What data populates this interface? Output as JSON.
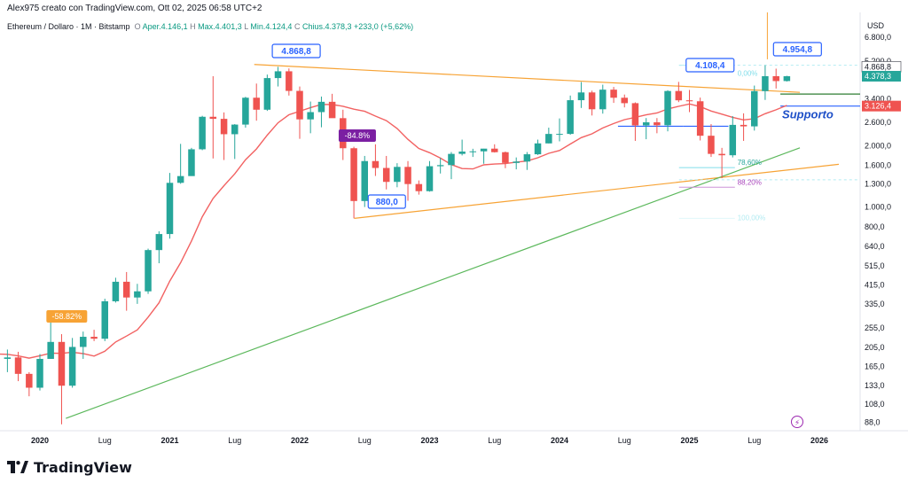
{
  "header": {
    "title": "Alex975 creato con TradingView.com, Ott 02, 2025 06:58 UTC+2"
  },
  "ohlc": {
    "symbol": "Ethereum / Dollaro · 1M · Bitstamp",
    "open_label": "O",
    "open": "Aper.4.146,1",
    "high_label": "H",
    "high": "Max.4.401,3",
    "low_label": "L",
    "low": "Min.4.124,4",
    "close_label": "C",
    "close": "Chius.4.378,3",
    "change": "+233,0 (+5,62%)"
  },
  "footer": {
    "brand": "TradingView"
  },
  "colors": {
    "up": "#26a69a",
    "down": "#ef5350",
    "ma": "#f26262",
    "orange": "#f7a335",
    "green": "#5cb85c",
    "blue": "#2962ff"
  },
  "chart_data": {
    "type": "candlestick",
    "currency": "USD",
    "scale": "log",
    "ylim": [
      80,
      9000
    ],
    "x_ticks": [
      "2020",
      "Lug",
      "2021",
      "Lug",
      "2022",
      "Lug",
      "2023",
      "Lug",
      "2024",
      "Lug",
      "2025",
      "Lug",
      "2026"
    ],
    "y_ticks": [
      "6.800,0",
      "5.200,0",
      "3.400,0",
      "2.600,0",
      "2.000,0",
      "1.600,0",
      "1.300,0",
      "1.000,0",
      "800,0",
      "640,0",
      "515,0",
      "415,0",
      "335,0",
      "255,0",
      "205,0",
      "165,0",
      "133,0",
      "108,0",
      "88,0"
    ],
    "price_labels": [
      {
        "text": "4.868,8",
        "value": 4868.8,
        "color": "#ffffff"
      },
      {
        "text": "4.378,3",
        "value": 4378.3,
        "color": "#26a69a"
      },
      {
        "text": "3.126,4",
        "value": 3126.4,
        "color": "#ef5350"
      }
    ],
    "candles_note": "Monthly ETH/USD, Jan 2019 - Oct 2025",
    "candles": [
      [
        2019.0,
        130,
        155,
        101,
        120
      ],
      [
        2019.083,
        136,
        160,
        130,
        152
      ],
      [
        2019.167,
        152,
        185,
        130,
        138
      ],
      [
        2019.25,
        138,
        182,
        133,
        175
      ],
      [
        2019.333,
        175,
        280,
        160,
        268
      ],
      [
        2019.417,
        268,
        360,
        240,
        290
      ],
      [
        2019.5,
        290,
        320,
        190,
        218
      ],
      [
        2019.583,
        218,
        232,
        164,
        172
      ],
      [
        2019.667,
        172,
        225,
        160,
        180
      ],
      [
        2019.75,
        180,
        200,
        155,
        183
      ],
      [
        2019.833,
        183,
        195,
        140,
        152
      ],
      [
        2019.917,
        152,
        155,
        118,
        130
      ],
      [
        2020.0,
        130,
        190,
        126,
        180
      ],
      [
        2020.083,
        180,
        288,
        180,
        218
      ],
      [
        2020.167,
        218,
        238,
        86,
        133
      ],
      [
        2020.25,
        133,
        228,
        130,
        206
      ],
      [
        2020.333,
        206,
        245,
        180,
        231
      ],
      [
        2020.417,
        231,
        250,
        220,
        226
      ],
      [
        2020.5,
        226,
        355,
        220,
        345
      ],
      [
        2020.583,
        345,
        450,
        340,
        430
      ],
      [
        2020.667,
        430,
        480,
        310,
        360
      ],
      [
        2020.75,
        360,
        420,
        335,
        386
      ],
      [
        2020.833,
        386,
        625,
        375,
        615
      ],
      [
        2020.917,
        615,
        760,
        530,
        737
      ],
      [
        2021.0,
        737,
        1470,
        700,
        1314
      ],
      [
        2021.083,
        1314,
        2040,
        1300,
        1418
      ],
      [
        2021.167,
        1418,
        1950,
        1420,
        1919
      ],
      [
        2021.25,
        1919,
        2800,
        1900,
        2770
      ],
      [
        2021.333,
        2770,
        4380,
        1730,
        2706
      ],
      [
        2021.417,
        2706,
        2910,
        1700,
        2275
      ],
      [
        2021.5,
        2275,
        2550,
        1720,
        2536
      ],
      [
        2021.583,
        2536,
        3470,
        2450,
        3435
      ],
      [
        2021.667,
        3435,
        4030,
        2650,
        3000
      ],
      [
        2021.75,
        3000,
        4460,
        2960,
        4288
      ],
      [
        2021.833,
        4288,
        4868,
        3900,
        4630
      ],
      [
        2021.917,
        4630,
        4780,
        3520,
        3710
      ],
      [
        2022.0,
        3710,
        3900,
        2160,
        2690
      ],
      [
        2022.083,
        2690,
        3290,
        2300,
        2920
      ],
      [
        2022.167,
        2920,
        3480,
        2460,
        3280
      ],
      [
        2022.25,
        3280,
        3590,
        2750,
        2727
      ],
      [
        2022.333,
        2727,
        3000,
        1700,
        1942
      ],
      [
        2022.417,
        1942,
        1975,
        880,
        1070
      ],
      [
        2022.5,
        1070,
        1780,
        1000,
        1680
      ],
      [
        2022.583,
        1680,
        2030,
        1420,
        1554
      ],
      [
        2022.667,
        1554,
        1780,
        1220,
        1328
      ],
      [
        2022.75,
        1328,
        1640,
        1250,
        1573
      ],
      [
        2022.833,
        1573,
        1680,
        1073,
        1296
      ],
      [
        2022.917,
        1296,
        1350,
        1150,
        1196
      ],
      [
        2023.0,
        1196,
        1680,
        1190,
        1585
      ],
      [
        2023.083,
        1585,
        1740,
        1460,
        1605
      ],
      [
        2023.167,
        1605,
        1860,
        1370,
        1822
      ],
      [
        2023.25,
        1822,
        2140,
        1790,
        1870
      ],
      [
        2023.333,
        1870,
        1930,
        1760,
        1875
      ],
      [
        2023.417,
        1875,
        1930,
        1630,
        1933
      ],
      [
        2023.5,
        1933,
        2030,
        1850,
        1857
      ],
      [
        2023.583,
        1857,
        1870,
        1550,
        1645
      ],
      [
        2023.667,
        1645,
        1750,
        1530,
        1671
      ],
      [
        2023.75,
        1671,
        1860,
        1520,
        1814
      ],
      [
        2023.833,
        1814,
        2140,
        1800,
        2051
      ],
      [
        2023.917,
        2051,
        2450,
        2050,
        2282
      ],
      [
        2024.0,
        2282,
        2720,
        2100,
        2283
      ],
      [
        2024.083,
        2283,
        3520,
        2260,
        3340
      ],
      [
        2024.167,
        3340,
        4100,
        3060,
        3646
      ],
      [
        2024.25,
        3646,
        3720,
        2810,
        3015
      ],
      [
        2024.333,
        3015,
        3980,
        2870,
        3762
      ],
      [
        2024.417,
        3762,
        3880,
        3240,
        3434
      ],
      [
        2024.5,
        3434,
        3560,
        3080,
        3230
      ],
      [
        2024.583,
        3230,
        3260,
        2110,
        2513
      ],
      [
        2024.667,
        2513,
        2730,
        2150,
        2602
      ],
      [
        2024.75,
        2602,
        2730,
        2300,
        2518
      ],
      [
        2024.833,
        2518,
        3740,
        2350,
        3706
      ],
      [
        2024.917,
        3706,
        4108,
        3270,
        3336
      ],
      [
        2025.0,
        3336,
        3750,
        2920,
        3300
      ],
      [
        2025.083,
        3300,
        3440,
        2120,
        2236
      ],
      [
        2025.167,
        2236,
        2550,
        1760,
        1822
      ],
      [
        2025.25,
        1822,
        1950,
        1385,
        1794
      ],
      [
        2025.333,
        1794,
        2790,
        1750,
        2528
      ],
      [
        2025.417,
        2528,
        2880,
        2110,
        2486
      ],
      [
        2025.5,
        2486,
        3940,
        2370,
        3700
      ],
      [
        2025.583,
        3700,
        4955,
        3350,
        4381
      ],
      [
        2025.667,
        4381,
        4770,
        3810,
        4146
      ],
      [
        2025.75,
        4146,
        4401,
        4124,
        4378
      ]
    ],
    "annotations": [
      {
        "text": "4.868,8",
        "type": "callout"
      },
      {
        "text": "4.108,4",
        "type": "callout"
      },
      {
        "text": "4.954,8",
        "type": "callout"
      },
      {
        "text": "880,0",
        "type": "callout"
      },
      {
        "text": "-58.82%",
        "type": "tag"
      },
      {
        "text": "-84.8%",
        "type": "tag"
      },
      {
        "text": "Supporto",
        "type": "label"
      },
      {
        "text": "0,00%",
        "type": "fib"
      },
      {
        "text": "78,60%",
        "type": "fib"
      },
      {
        "text": "88,20%",
        "type": "fib"
      },
      {
        "text": "100,00%",
        "type": "fib"
      }
    ]
  }
}
